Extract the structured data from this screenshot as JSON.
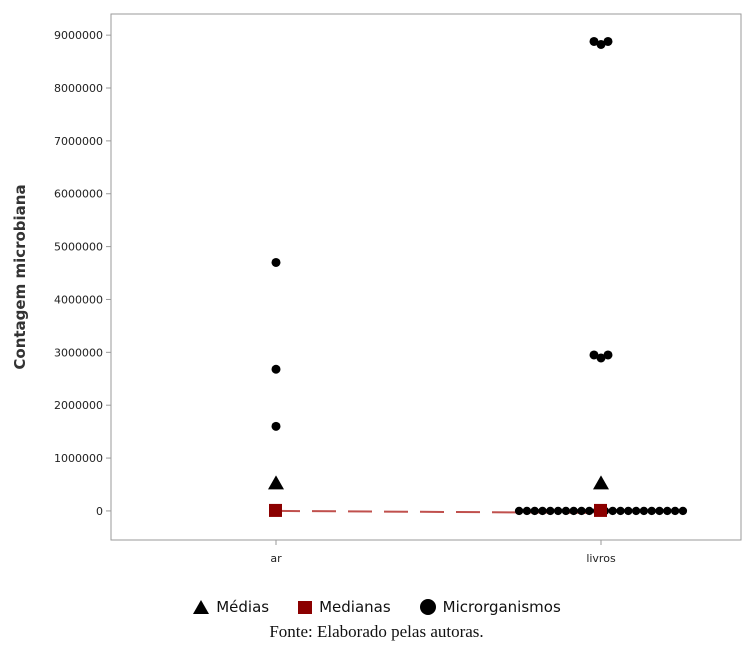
{
  "chart_data": {
    "type": "scatter",
    "title": "",
    "xlabel": "",
    "ylabel": "Contagem microbiana",
    "categories": [
      "ar",
      "livros"
    ],
    "ylim": [
      -550000,
      9400000
    ],
    "yticks": [
      0,
      1000000,
      2000000,
      3000000,
      4000000,
      5000000,
      6000000,
      7000000,
      8000000,
      9000000
    ],
    "ytick_labels": [
      "0",
      "1000000",
      "2000000",
      "3000000",
      "4000000",
      "5000000",
      "6000000",
      "7000000",
      "8000000",
      "9000000"
    ],
    "grid": false,
    "legend_position": "bottom",
    "series": [
      {
        "name": "Médias",
        "marker": "triangle",
        "color": "#000000",
        "points": [
          {
            "category": "ar",
            "y": 520000
          },
          {
            "category": "livros",
            "y": 520000
          }
        ]
      },
      {
        "name": "Medianas",
        "marker": "square",
        "color": "#8b0000",
        "line_style": "dashed",
        "line_color": "#c0504d",
        "points": [
          {
            "category": "ar",
            "y": 0
          },
          {
            "category": "livros",
            "y": 0
          }
        ]
      },
      {
        "name": "Microrganismos",
        "marker": "circle",
        "color": "#000000",
        "points": [
          {
            "category": "ar",
            "y": 4700000
          },
          {
            "category": "ar",
            "y": 2680000
          },
          {
            "category": "ar",
            "y": 1600000
          },
          {
            "category": "livros",
            "y": 8880000
          },
          {
            "category": "livros",
            "y": 8880000
          },
          {
            "category": "livros",
            "y": 8880000
          },
          {
            "category": "livros",
            "y": 2950000
          },
          {
            "category": "livros",
            "y": 2950000
          },
          {
            "category": "livros",
            "y": 2950000
          },
          {
            "category": "livros",
            "y": 0
          },
          {
            "category": "livros",
            "y": 0
          },
          {
            "category": "livros",
            "y": 0
          },
          {
            "category": "livros",
            "y": 0
          },
          {
            "category": "livros",
            "y": 0
          },
          {
            "category": "livros",
            "y": 0
          },
          {
            "category": "livros",
            "y": 0
          },
          {
            "category": "livros",
            "y": 0
          },
          {
            "category": "livros",
            "y": 0
          },
          {
            "category": "livros",
            "y": 0
          },
          {
            "category": "livros",
            "y": 0
          },
          {
            "category": "livros",
            "y": 0
          },
          {
            "category": "livros",
            "y": 0
          },
          {
            "category": "livros",
            "y": 0
          },
          {
            "category": "livros",
            "y": 0
          },
          {
            "category": "livros",
            "y": 0
          },
          {
            "category": "livros",
            "y": 0
          },
          {
            "category": "livros",
            "y": 0
          },
          {
            "category": "livros",
            "y": 0
          },
          {
            "category": "livros",
            "y": 0
          },
          {
            "category": "livros",
            "y": 0
          },
          {
            "category": "livros",
            "y": 0
          }
        ]
      }
    ]
  },
  "legend": {
    "items": [
      {
        "label": "Médias"
      },
      {
        "label": "Medianas"
      },
      {
        "label": "Microrganismos"
      }
    ]
  },
  "caption": "Fonte: Elaborado pelas autoras."
}
